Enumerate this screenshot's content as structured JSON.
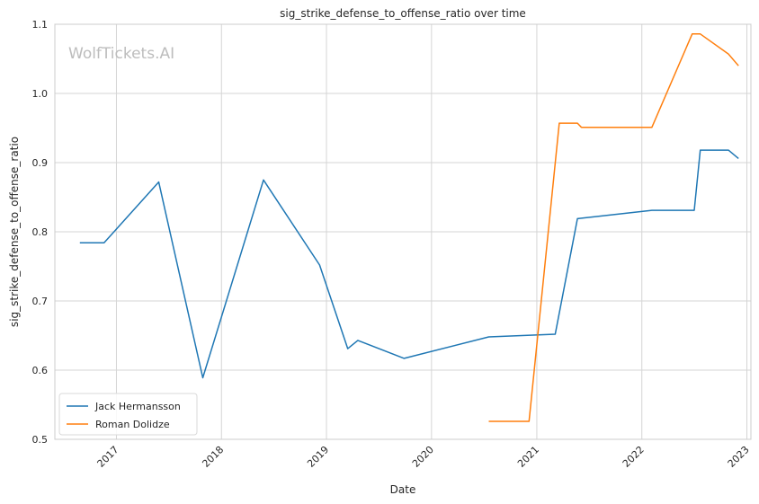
{
  "chart_data": {
    "type": "line",
    "title": "sig_strike_defense_to_offense_ratio over time",
    "xlabel": "Date",
    "ylabel": "sig_strike_defense_to_offense_ratio",
    "watermark": "WolfTickets.AI",
    "xlim": [
      "2016-06-01",
      "2023-01-15"
    ],
    "ylim": [
      0.5,
      1.1
    ],
    "x_ticks": [
      "2017-01-01",
      "2018-01-01",
      "2019-01-01",
      "2020-01-01",
      "2021-01-01",
      "2022-01-01",
      "2023-01-01"
    ],
    "x_tick_labels": [
      "2017",
      "2018",
      "2019",
      "2020",
      "2021",
      "2022",
      "2023"
    ],
    "y_ticks": [
      0.5,
      0.6,
      0.7,
      0.8,
      0.9,
      1.0,
      1.1
    ],
    "y_tick_labels": [
      "0.5",
      "0.6",
      "0.7",
      "0.8",
      "0.9",
      "1.0",
      "1.1"
    ],
    "grid": true,
    "legend_position": "lower-left",
    "series": [
      {
        "name": "Jack Hermansson",
        "color": "#1f77b4",
        "points": [
          {
            "x": "2016-08-27",
            "y": 0.784
          },
          {
            "x": "2016-11-19",
            "y": 0.784
          },
          {
            "x": "2017-05-28",
            "y": 0.872
          },
          {
            "x": "2017-10-28",
            "y": 0.589
          },
          {
            "x": "2018-05-27",
            "y": 0.875
          },
          {
            "x": "2018-12-08",
            "y": 0.752
          },
          {
            "x": "2019-03-16",
            "y": 0.631
          },
          {
            "x": "2019-04-20",
            "y": 0.643
          },
          {
            "x": "2019-09-28",
            "y": 0.617
          },
          {
            "x": "2020-07-18",
            "y": 0.648
          },
          {
            "x": "2021-03-06",
            "y": 0.652
          },
          {
            "x": "2021-05-22",
            "y": 0.819
          },
          {
            "x": "2022-02-05",
            "y": 0.831
          },
          {
            "x": "2022-07-02",
            "y": 0.831
          },
          {
            "x": "2022-07-23",
            "y": 0.918
          },
          {
            "x": "2022-10-29",
            "y": 0.918
          },
          {
            "x": "2022-12-03",
            "y": 0.906
          }
        ]
      },
      {
        "name": "Roman Dolidze",
        "color": "#ff7f0e",
        "points": [
          {
            "x": "2020-07-18",
            "y": 0.526
          },
          {
            "x": "2020-12-05",
            "y": 0.526
          },
          {
            "x": "2021-03-20",
            "y": 0.957
          },
          {
            "x": "2021-05-22",
            "y": 0.957
          },
          {
            "x": "2021-06-05",
            "y": 0.951
          },
          {
            "x": "2022-02-05",
            "y": 0.951
          },
          {
            "x": "2022-06-25",
            "y": 1.086
          },
          {
            "x": "2022-07-23",
            "y": 1.086
          },
          {
            "x": "2022-10-29",
            "y": 1.057
          },
          {
            "x": "2022-12-03",
            "y": 1.04
          }
        ]
      }
    ]
  }
}
